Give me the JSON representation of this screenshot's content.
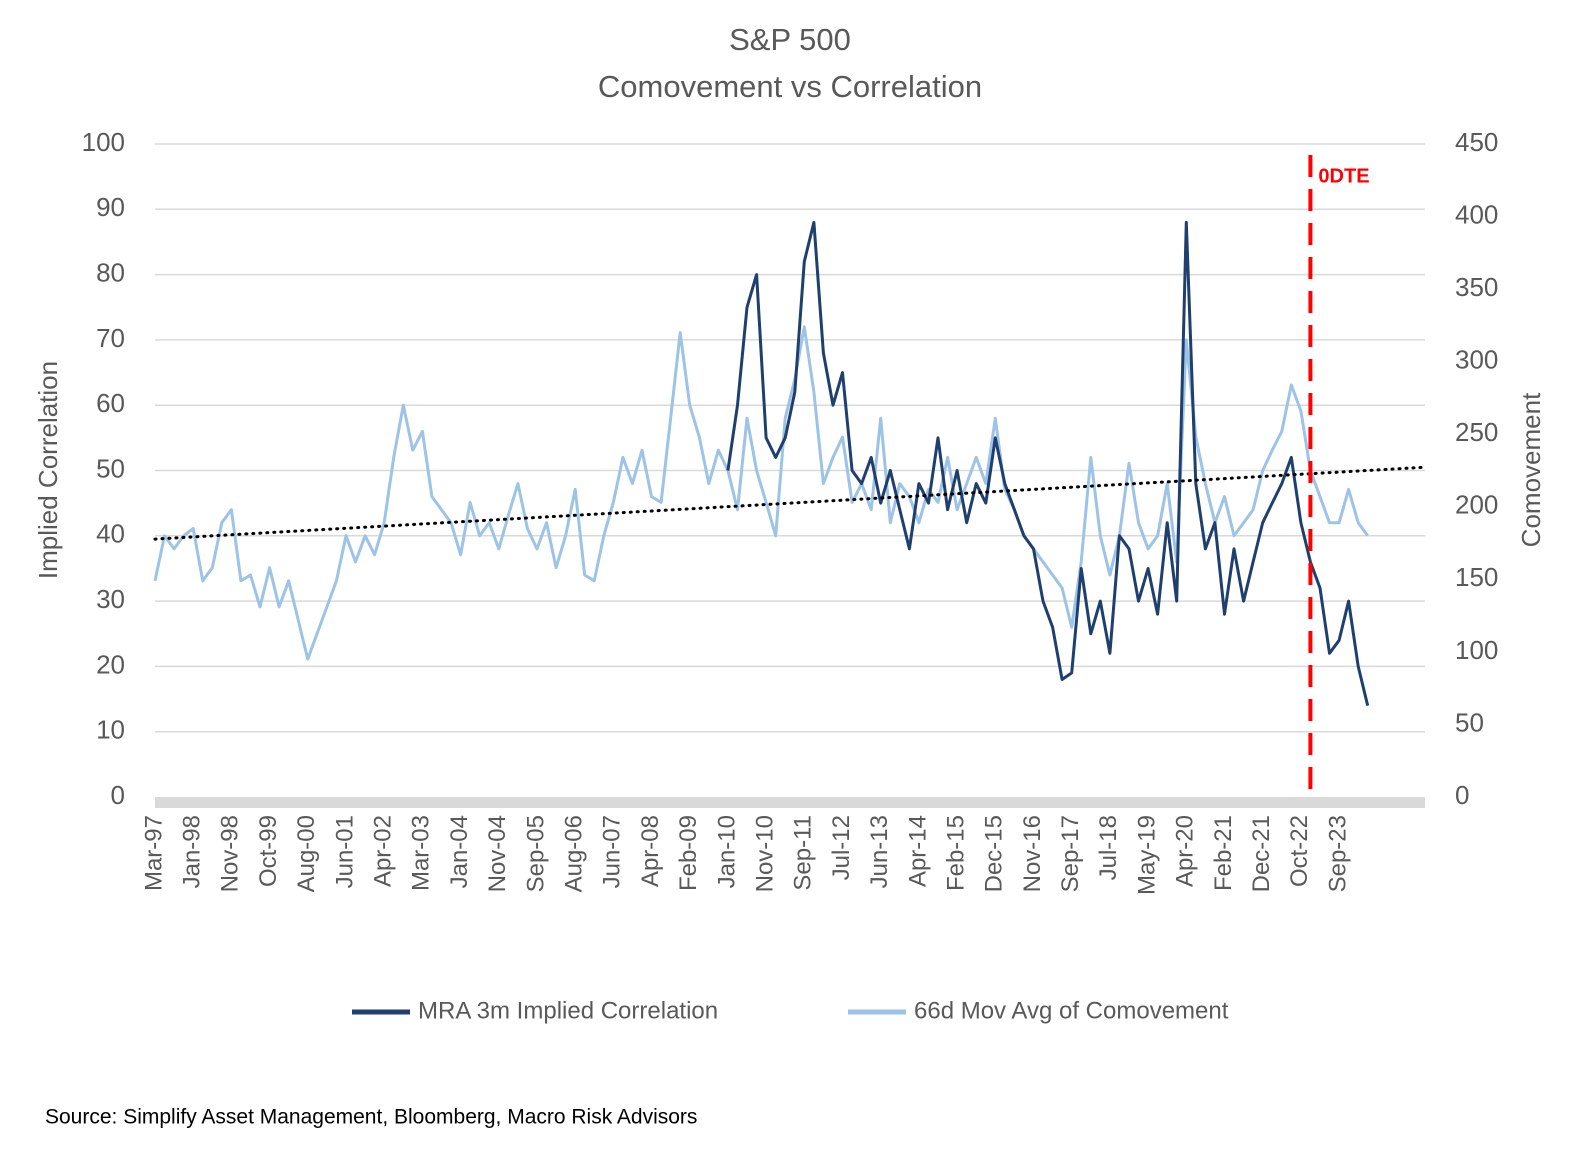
{
  "chart_data": {
    "type": "line",
    "title": "S&P 500",
    "subtitle": "Comovement vs Correlation",
    "y_label": "Implied Correlation",
    "y2_label": "Comovement",
    "source": "Source: Simplify Asset Management, Bloomberg, Macro Risk Advisors",
    "categories": [
      "Mar-97",
      null,
      null,
      null,
      "Jan-98",
      null,
      null,
      null,
      "Nov-98",
      null,
      null,
      null,
      "Oct-99",
      null,
      null,
      null,
      "Aug-00",
      null,
      null,
      null,
      "Jun-01",
      null,
      null,
      null,
      "Apr-02",
      null,
      null,
      null,
      "Mar-03",
      null,
      null,
      null,
      "Jan-04",
      null,
      null,
      null,
      "Nov-04",
      null,
      null,
      null,
      "Sep-05",
      null,
      null,
      null,
      "Aug-06",
      null,
      null,
      null,
      "Jun-07",
      null,
      null,
      null,
      "Apr-08",
      null,
      null,
      null,
      "Feb-09",
      null,
      null,
      null,
      "Jan-10",
      null,
      null,
      null,
      "Nov-10",
      null,
      null,
      null,
      "Sep-11",
      null,
      null,
      null,
      "Jul-12",
      null,
      null,
      null,
      "Jun-13",
      null,
      null,
      null,
      "Apr-14",
      null,
      null,
      null,
      "Feb-15",
      null,
      null,
      null,
      "Dec-15",
      null,
      null,
      null,
      "Nov-16",
      null,
      null,
      null,
      "Sep-17",
      null,
      null,
      null,
      "Jul-18",
      null,
      null,
      null,
      "May-19",
      null,
      null,
      null,
      "Apr-20",
      null,
      null,
      null,
      "Feb-21",
      null,
      null,
      null,
      "Dec-21",
      null,
      null,
      null,
      "Oct-22",
      null,
      null,
      null,
      "Sep-23",
      null,
      null,
      null,
      null,
      null,
      null,
      null,
      null
    ],
    "series": [
      {
        "name": "66d Mov Avg of Comovement",
        "color": "#9dc3e6",
        "axis": "y2",
        "values": [
          149,
          180,
          171,
          180,
          185,
          149,
          158,
          189,
          198,
          149,
          153,
          131,
          158,
          131,
          149,
          122,
          95,
          113,
          131,
          149,
          180,
          162,
          180,
          167,
          189,
          234,
          270,
          239,
          252,
          207,
          198,
          189,
          167,
          203,
          180,
          189,
          171,
          194,
          216,
          185,
          171,
          189,
          158,
          180,
          212,
          153,
          149,
          180,
          203,
          234,
          216,
          239,
          207,
          203,
          261,
          320,
          270,
          248,
          216,
          239,
          225,
          198,
          261,
          225,
          203,
          180,
          261,
          288,
          324,
          279,
          216,
          234,
          248,
          203,
          216,
          198,
          261,
          189,
          216,
          207,
          189,
          212,
          203,
          234,
          198,
          216,
          234,
          216,
          261,
          212,
          198,
          180,
          171,
          162,
          153,
          144,
          117,
          162,
          234,
          180,
          153,
          180,
          230,
          189,
          171,
          180,
          216,
          162,
          315,
          248,
          216,
          189,
          207,
          180,
          189,
          198,
          225,
          239,
          252,
          284,
          266,
          225,
          207,
          189,
          189,
          212,
          189,
          180,
          null,
          null,
          null,
          null,
          null
        ]
      },
      {
        "name": "MRA 3m Implied Correlation",
        "color": "#1f3f6e",
        "values": [
          null,
          null,
          null,
          null,
          null,
          null,
          null,
          null,
          null,
          null,
          null,
          null,
          null,
          null,
          null,
          null,
          null,
          null,
          null,
          null,
          null,
          null,
          null,
          null,
          null,
          null,
          null,
          null,
          null,
          null,
          null,
          null,
          null,
          null,
          null,
          null,
          null,
          null,
          null,
          null,
          null,
          null,
          null,
          null,
          null,
          null,
          null,
          null,
          null,
          null,
          null,
          null,
          null,
          null,
          null,
          null,
          null,
          null,
          null,
          null,
          50,
          60,
          75,
          80,
          55,
          52,
          55,
          62,
          82,
          88,
          68,
          60,
          65,
          50,
          48,
          52,
          45,
          50,
          44,
          38,
          48,
          45,
          55,
          44,
          50,
          42,
          48,
          45,
          55,
          48,
          44,
          40,
          38,
          30,
          26,
          18,
          19,
          35,
          25,
          30,
          22,
          40,
          38,
          30,
          35,
          28,
          42,
          30,
          88,
          48,
          38,
          42,
          28,
          38,
          30,
          36,
          42,
          45,
          48,
          52,
          42,
          36,
          32,
          22,
          24,
          30,
          20,
          14,
          null,
          null,
          null,
          null,
          null
        ]
      }
    ],
    "trendline": {
      "color": "#000000",
      "values": [
        39.5,
        50.5
      ]
    },
    "annotation": {
      "text": "0DTE",
      "x_index": 121,
      "color": "#ff0000"
    },
    "ylim": [
      0,
      100
    ],
    "yticks": [
      0,
      10,
      20,
      30,
      40,
      50,
      60,
      70,
      80,
      90,
      100
    ],
    "y2lim": [
      0,
      450
    ],
    "y2ticks": [
      0,
      50,
      100,
      150,
      200,
      250,
      300,
      350,
      400,
      450
    ],
    "grid": true,
    "legend": "bottom"
  }
}
